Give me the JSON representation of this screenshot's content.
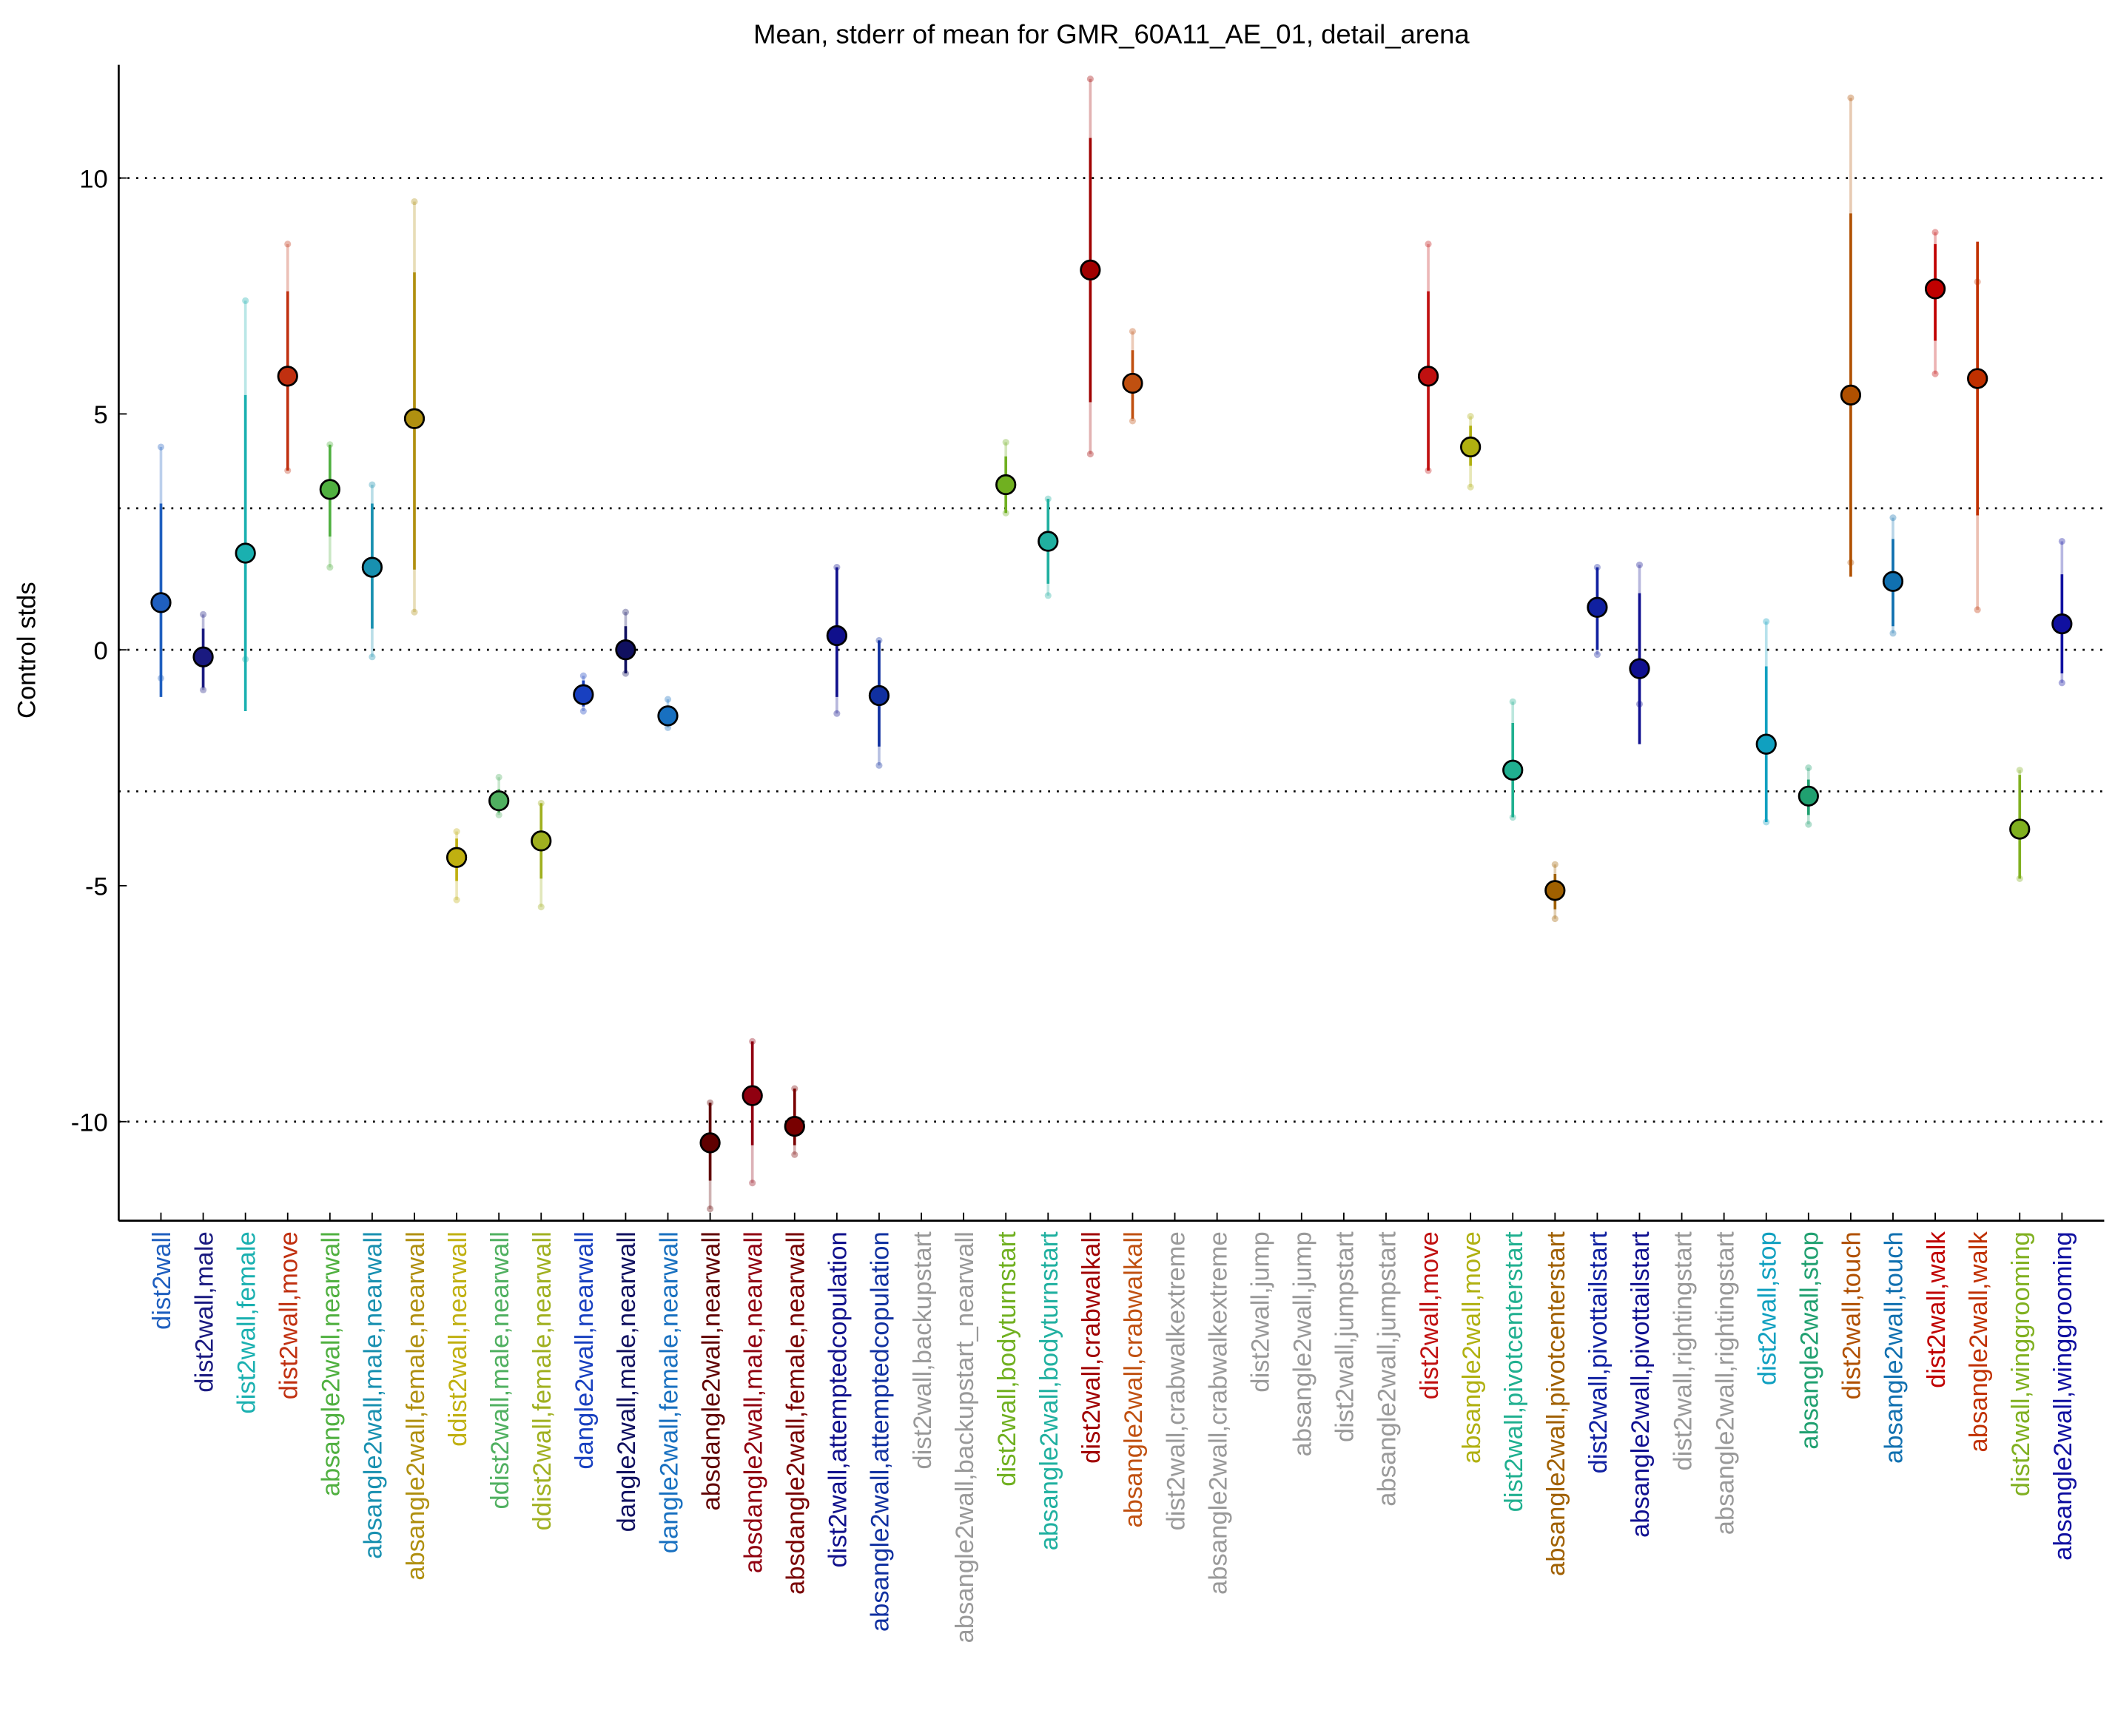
{
  "chart_data": {
    "type": "errorbar",
    "title": "Mean, stderr of mean for GMR_60A11_AE_01, detail_arena",
    "ylabel": "Control stds",
    "ylim": [
      -12.1,
      12.4
    ],
    "yticks": [
      -10,
      -5,
      0,
      5,
      10
    ],
    "hlines": [
      -10,
      -3,
      0,
      3,
      10
    ],
    "grid": false,
    "categories": [
      "dist2wall",
      "dist2wall,male",
      "dist2wall,female",
      "dist2wall,move",
      "absangle2wall,nearwall",
      "absangle2wall,male,nearwall",
      "absangle2wall,female,nearwall",
      "ddist2wall,nearwall",
      "ddist2wall,male,nearwall",
      "ddist2wall,female,nearwall",
      "dangle2wall,nearwall",
      "dangle2wall,male,nearwall",
      "dangle2wall,female,nearwall",
      "absdangle2wall,nearwall",
      "absdangle2wall,male,nearwall",
      "absdangle2wall,female,nearwall",
      "dist2wall,attemptedcopulation",
      "absangle2wall,attemptedcopulation",
      "dist2wall,backupstart",
      "absangle2wall,backupstart_nearwall",
      "dist2wall,bodyturnstart",
      "absangle2wall,bodyturnstart",
      "dist2wall,crabwalkall",
      "absangle2wall,crabwalkall",
      "dist2wall,crabwalkextreme",
      "absangle2wall,crabwalkextreme",
      "dist2wall,jump",
      "absangle2wall,jump",
      "dist2wall,jumpstart",
      "absangle2wall,jumpstart",
      "dist2wall,move",
      "absangle2wall,move",
      "dist2wall,pivotcenterstart",
      "absangle2wall,pivotcenterstart",
      "dist2wall,pivottailstart",
      "absangle2wall,pivottailstart",
      "dist2wall,rightingstart",
      "absangle2wall,rightingstart",
      "dist2wall,stop",
      "absangle2wall,stop",
      "dist2wall,touch",
      "absangle2wall,touch",
      "dist2wall,walk",
      "absangle2wall,walk",
      "dist2wall,winggrooming",
      "absangle2wall,winggrooming"
    ],
    "colors": [
      "#1f5fbf",
      "#1a1a80",
      "#1ab0b0",
      "#c03010",
      "#50b040",
      "#1890b0",
      "#b09010",
      "#c0b010",
      "#50b060",
      "#a0b020",
      "#1840c0",
      "#101060",
      "#1870c0",
      "#600000",
      "#900010",
      "#780000",
      "#10108c",
      "#1030a0",
      "#999999",
      "#999999",
      "#70b020",
      "#20b0a0",
      "#a00000",
      "#c05010",
      "#999999",
      "#999999",
      "#999999",
      "#999999",
      "#999999",
      "#999999",
      "#c01010",
      "#b0b010",
      "#20b090",
      "#a06000",
      "#1020a0",
      "#101090",
      "#999999",
      "#999999",
      "#10a0c0",
      "#20a070",
      "#b05000",
      "#1070b0",
      "#c00000",
      "#c03000",
      "#80b020",
      "#1010a0"
    ],
    "values": [
      1.0,
      -0.15,
      2.05,
      5.8,
      3.4,
      1.75,
      4.9,
      -4.4,
      -3.2,
      -4.05,
      -0.95,
      0.0,
      -1.4,
      -10.45,
      -9.45,
      -10.1,
      0.3,
      -0.97,
      null,
      null,
      3.5,
      2.3,
      8.05,
      5.65,
      null,
      null,
      null,
      null,
      null,
      null,
      5.8,
      4.3,
      -2.55,
      -5.1,
      0.9,
      -0.4,
      null,
      null,
      -2.0,
      -3.1,
      5.4,
      1.45,
      7.65,
      5.75,
      -3.8,
      0.55
    ],
    "err_low": [
      -1.0,
      -0.8,
      -1.3,
      3.8,
      2.4,
      0.45,
      1.7,
      -4.9,
      -3.45,
      -4.85,
      -1.2,
      -0.5,
      -1.55,
      -11.25,
      -10.5,
      -10.5,
      -1.0,
      -2.05,
      null,
      null,
      2.9,
      1.4,
      5.25,
      4.9,
      null,
      null,
      null,
      null,
      null,
      null,
      3.8,
      3.9,
      -3.55,
      -5.5,
      0.0,
      -2.0,
      null,
      null,
      -3.65,
      -3.5,
      1.55,
      0.5,
      6.55,
      2.85,
      -4.85,
      -0.5
    ],
    "err_high": [
      3.1,
      0.45,
      5.4,
      7.6,
      4.35,
      3.1,
      8.0,
      -4.0,
      -2.95,
      -3.25,
      -0.65,
      0.5,
      -1.2,
      -9.6,
      -8.3,
      -9.3,
      1.75,
      0.2,
      null,
      null,
      4.1,
      3.2,
      10.85,
      6.35,
      null,
      null,
      null,
      null,
      null,
      null,
      7.6,
      4.75,
      -1.55,
      -4.75,
      1.75,
      1.2,
      null,
      null,
      -0.35,
      -2.75,
      9.25,
      2.35,
      8.6,
      8.65,
      -2.65,
      1.6
    ],
    "range_low": [
      -0.6,
      -0.85,
      -0.2,
      3.8,
      1.75,
      -0.15,
      0.8,
      -5.3,
      -3.5,
      -5.45,
      -1.3,
      -0.5,
      -1.65,
      -11.85,
      -11.3,
      -10.7,
      -1.35,
      -2.45,
      null,
      null,
      2.9,
      1.15,
      4.15,
      4.85,
      null,
      null,
      null,
      null,
      null,
      null,
      3.8,
      3.45,
      -3.55,
      -5.7,
      -0.1,
      -1.15,
      null,
      null,
      -3.65,
      -3.7,
      1.85,
      0.35,
      5.85,
      0.85,
      -4.85,
      -0.7
    ],
    "range_high": [
      4.3,
      0.75,
      7.4,
      8.6,
      4.35,
      3.5,
      9.5,
      -3.85,
      -2.7,
      -3.25,
      -0.55,
      0.8,
      -1.05,
      -9.6,
      -8.3,
      -9.3,
      1.75,
      0.2,
      null,
      null,
      4.4,
      3.2,
      12.1,
      6.75,
      null,
      null,
      null,
      null,
      null,
      null,
      8.6,
      4.95,
      -1.1,
      -4.55,
      1.75,
      1.8,
      null,
      null,
      0.6,
      -2.5,
      11.7,
      2.8,
      8.85,
      7.8,
      -2.55,
      2.3
    ]
  }
}
